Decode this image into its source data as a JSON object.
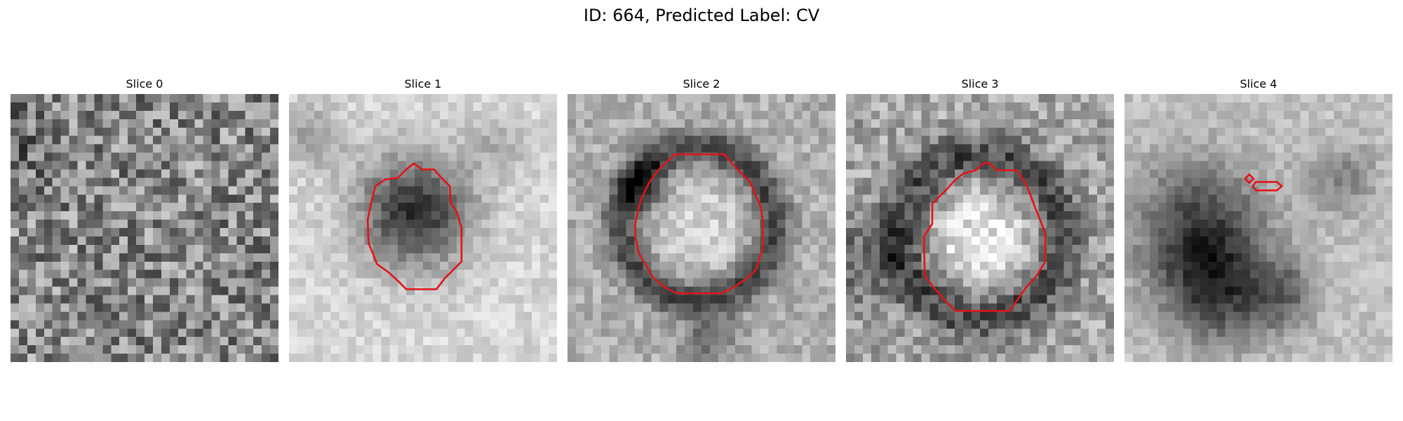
{
  "figure": {
    "title": "ID: 664, Predicted Label: CV"
  },
  "colors": {
    "contour": "#e0141a",
    "colormap": "grayscale"
  },
  "panels": [
    {
      "title": "Slice 0",
      "has_contour": false
    },
    {
      "title": "Slice 1",
      "has_contour": true
    },
    {
      "title": "Slice 2",
      "has_contour": true
    },
    {
      "title": "Slice 3",
      "has_contour": true
    },
    {
      "title": "Slice 4",
      "has_contour": true
    }
  ]
}
